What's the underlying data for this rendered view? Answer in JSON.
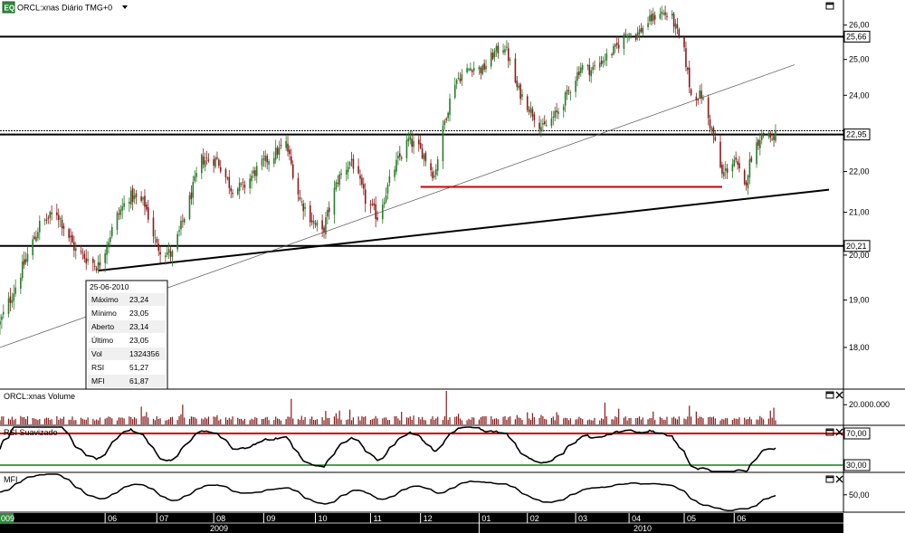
{
  "header": {
    "app_icon": "eq-logo-icon",
    "app_icon_text": "EQ",
    "title": "ORCL:xnas Diário TMG+0",
    "menu_icon": "dropdown-arrow-icon"
  },
  "colors": {
    "up": "#2a7a2a",
    "down": "#8b1a1a",
    "support_line": "#cc0000",
    "rsi_upper": "#cc0000",
    "rsi_lower": "#1a7a1a",
    "time_axis_bg": "#000000"
  },
  "chart_data": [
    {
      "type": "candlestick",
      "name": "ORCL:xnas Diário TMG+0",
      "ylim": [
        17.2,
        26.7
      ],
      "yscale": "log",
      "y_ticks": [
        "18,00",
        "19,00",
        "20,00",
        "21,00",
        "22,00",
        "23,00",
        "24,00",
        "25,00",
        "26,00"
      ],
      "y_tick_values": [
        18,
        19,
        20,
        21,
        22,
        23,
        24,
        25,
        26
      ],
      "price_tags": [
        {
          "label": "25,66",
          "value": 25.66
        },
        {
          "label": "22,95",
          "value": 22.95
        },
        {
          "label": "20,21",
          "value": 20.21
        }
      ],
      "last_price_line": 23.05,
      "horizontal_lines": [
        25.66,
        22.95,
        20.21
      ],
      "red_support": {
        "from": "2009-12-01",
        "to": "2010-05-25",
        "value": 21.62
      },
      "trendlines": [
        {
          "from_date": "2009-05-28",
          "from_value": 19.65,
          "to_date": "2010-07-26",
          "to_value": 21.55,
          "style": "bold"
        },
        {
          "from_date": "2009-04-01",
          "from_value": 18.0,
          "to_date": "2010-07-06",
          "to_value": 24.85,
          "style": "thin"
        }
      ],
      "month_ticks": [
        "06",
        "07",
        "08",
        "09",
        "10",
        "11",
        "12",
        "01",
        "02",
        "03",
        "04",
        "05",
        "06"
      ],
      "year_labels": [
        "2009",
        "2010"
      ],
      "left_edge_label": "009",
      "grid": false,
      "anchors": [
        {
          "date": "2009-04-01",
          "close": 18.5
        },
        {
          "date": "2009-04-10",
          "close": 19.3
        },
        {
          "date": "2009-04-24",
          "close": 20.7
        },
        {
          "date": "2009-05-04",
          "close": 21.0
        },
        {
          "date": "2009-05-15",
          "close": 20.1
        },
        {
          "date": "2009-05-28",
          "close": 19.75
        },
        {
          "date": "2009-06-08",
          "close": 20.9
        },
        {
          "date": "2009-06-15",
          "close": 21.4
        },
        {
          "date": "2009-06-24",
          "close": 21.2
        },
        {
          "date": "2009-07-01",
          "close": 20.2
        },
        {
          "date": "2009-07-10",
          "close": 20.0
        },
        {
          "date": "2009-07-20",
          "close": 21.3
        },
        {
          "date": "2009-07-27",
          "close": 22.3
        },
        {
          "date": "2009-08-05",
          "close": 22.3
        },
        {
          "date": "2009-08-13",
          "close": 21.6
        },
        {
          "date": "2009-08-20",
          "close": 21.6
        },
        {
          "date": "2009-08-27",
          "close": 22.0
        },
        {
          "date": "2009-09-03",
          "close": 22.3
        },
        {
          "date": "2009-09-14",
          "close": 22.7
        },
        {
          "date": "2009-09-22",
          "close": 21.3
        },
        {
          "date": "2009-10-01",
          "close": 20.7
        },
        {
          "date": "2009-10-05",
          "close": 20.5
        },
        {
          "date": "2009-10-14",
          "close": 21.8
        },
        {
          "date": "2009-10-22",
          "close": 22.3
        },
        {
          "date": "2009-10-30",
          "close": 21.3
        },
        {
          "date": "2009-11-06",
          "close": 20.9
        },
        {
          "date": "2009-11-16",
          "close": 22.1
        },
        {
          "date": "2009-11-24",
          "close": 22.8
        },
        {
          "date": "2009-12-02",
          "close": 22.5
        },
        {
          "date": "2009-12-09",
          "close": 21.9
        },
        {
          "date": "2009-12-15",
          "close": 23.3
        },
        {
          "date": "2009-12-21",
          "close": 24.4
        },
        {
          "date": "2009-12-31",
          "close": 24.8
        },
        {
          "date": "2010-01-06",
          "close": 24.7
        },
        {
          "date": "2010-01-13",
          "close": 25.2
        },
        {
          "date": "2010-01-19",
          "close": 25.4
        },
        {
          "date": "2010-01-26",
          "close": 24.2
        },
        {
          "date": "2010-02-03",
          "close": 23.6
        },
        {
          "date": "2010-02-10",
          "close": 23.1
        },
        {
          "date": "2010-02-18",
          "close": 23.5
        },
        {
          "date": "2010-02-25",
          "close": 24.1
        },
        {
          "date": "2010-03-04",
          "close": 24.8
        },
        {
          "date": "2010-03-10",
          "close": 24.7
        },
        {
          "date": "2010-03-17",
          "close": 25.0
        },
        {
          "date": "2010-03-24",
          "close": 25.3
        },
        {
          "date": "2010-03-31",
          "close": 25.8
        },
        {
          "date": "2010-04-05",
          "close": 25.7
        },
        {
          "date": "2010-04-12",
          "close": 26.1
        },
        {
          "date": "2010-04-19",
          "close": 26.4
        },
        {
          "date": "2010-04-26",
          "close": 26.2
        },
        {
          "date": "2010-05-03",
          "close": 25.2
        },
        {
          "date": "2010-05-07",
          "close": 24.0
        },
        {
          "date": "2010-05-13",
          "close": 24.0
        },
        {
          "date": "2010-05-20",
          "close": 22.9
        },
        {
          "date": "2010-05-25",
          "close": 21.9
        },
        {
          "date": "2010-06-01",
          "close": 22.3
        },
        {
          "date": "2010-06-07",
          "close": 21.6
        },
        {
          "date": "2010-06-11",
          "close": 22.4
        },
        {
          "date": "2010-06-16",
          "close": 22.9
        },
        {
          "date": "2010-06-21",
          "close": 23.0
        },
        {
          "date": "2010-06-24",
          "close": 22.7
        },
        {
          "date": "2010-06-25",
          "close": 23.05
        }
      ]
    },
    {
      "type": "bar",
      "name": "Volume",
      "title": "ORCL:xnas Volume",
      "y_tick": "20.000.000",
      "y_tick_value": 20000000,
      "ylim": [
        0,
        34000000
      ],
      "spikes": [
        {
          "date": "2009-06-22",
          "value": 18000000
        },
        {
          "date": "2009-07-16",
          "value": 20000000
        },
        {
          "date": "2009-09-17",
          "value": 26000000
        },
        {
          "date": "2009-10-21",
          "value": 15000000
        },
        {
          "date": "2009-12-16",
          "value": 34000000
        },
        {
          "date": "2010-03-18",
          "value": 22000000
        },
        {
          "date": "2010-03-26",
          "value": 16000000
        },
        {
          "date": "2010-05-06",
          "value": 19000000
        },
        {
          "date": "2010-06-24",
          "value": 17000000
        }
      ]
    },
    {
      "type": "line",
      "name": "RSI",
      "title": "RSI Suavizado",
      "ylim": [
        22,
        78
      ],
      "upper": 70,
      "lower": 30,
      "y_ticks": [
        "70,00",
        "30,00"
      ],
      "y_tick_values": [
        70,
        30
      ]
    },
    {
      "type": "line",
      "name": "MFI",
      "title": "MFI",
      "ylim": [
        30,
        75
      ],
      "y_tick": "50,00",
      "y_tick_value": 50
    }
  ],
  "info_box": {
    "date": "25-06-2010",
    "rows": [
      {
        "label": "Máximo",
        "value": "23,24"
      },
      {
        "label": "Mínimo",
        "value": "23,05"
      },
      {
        "label": "Aberto",
        "value": "23,14"
      },
      {
        "label": "Último",
        "value": "23,05"
      },
      {
        "label": "Vol",
        "value": "1324356"
      },
      {
        "label": "RSI",
        "value": "51,27"
      },
      {
        "label": "MFI",
        "value": "61,87"
      }
    ]
  },
  "pane_controls": {
    "maximize_icon": "maximize-icon",
    "close_icon": "close-icon"
  }
}
